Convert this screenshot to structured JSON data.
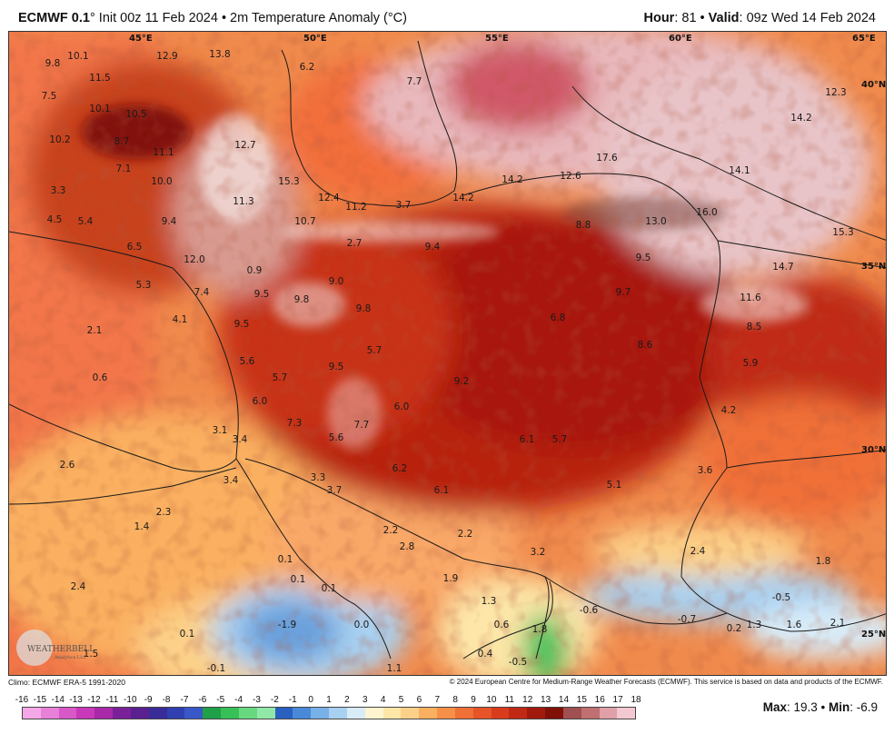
{
  "header": {
    "model": "ECMWF 0.1",
    "degree": "°",
    "init": " Init 00z 11 Feb 2024 • 2m Temperature Anomaly (°C)",
    "hour_label": "Hour",
    "hour_value": ": 81 • ",
    "valid_label": "Valid",
    "valid_value": ": 09z Wed 14 Feb 2024"
  },
  "footer": {
    "climo": "Climo: ECMWF ERA-5 1991-2020",
    "copyright": "© 2024 European Centre for Medium-Range Weather Forecasts (ECMWF). This service is based on data and products of the ECMWF."
  },
  "stats": {
    "max_label": "Max",
    "max_value": ": 19.3 • ",
    "min_label": "Min",
    "min_value": ": -6.9"
  },
  "colorbar": {
    "labels": [
      "-16",
      "-15",
      "-14",
      "-13",
      "-12",
      "-11",
      "-10",
      "-9",
      "-8",
      "-7",
      "-6",
      "-5",
      "-4",
      "-3",
      "-2",
      "-1",
      "0",
      "1",
      "2",
      "3",
      "4",
      "5",
      "6",
      "7",
      "8",
      "9",
      "10",
      "11",
      "12",
      "13",
      "14",
      "15",
      "16",
      "17",
      "18"
    ],
    "colors": [
      "#f5a8e8",
      "#e880d8",
      "#d858c8",
      "#c838b8",
      "#a828a8",
      "#7a2098",
      "#5a2090",
      "#3a2c98",
      "#3040b0",
      "#3858c8",
      "#20a048",
      "#38c058",
      "#68d880",
      "#90e8a8",
      "#2a60c0",
      "#4a88d8",
      "#78b0e8",
      "#a8d0f0",
      "#d8ecf8",
      "#fff4d0",
      "#fde6a8",
      "#fcd088",
      "#fab060",
      "#f69048",
      "#f07038",
      "#e65428",
      "#d83c1c",
      "#c02a14",
      "#a01a0e",
      "#801008",
      "#a05050",
      "#c07070",
      "#e0a0a8",
      "#f4c8d0"
    ]
  },
  "map": {
    "lon_labels": [
      "45°E",
      "50°E",
      "55°E",
      "60°E",
      "65°E"
    ],
    "lat_labels": [
      "40°N",
      "35°N",
      "30°N",
      "25°N"
    ],
    "values": [
      "9.8",
      "10.1",
      "11.5",
      "12.9",
      "13.8",
      "7.5",
      "10.1",
      "10.5",
      "10.2",
      "8.7",
      "6.2",
      "7.7",
      "12.7",
      "11.1",
      "7.1",
      "10.0",
      "15.3",
      "12.4",
      "11.2",
      "3.7",
      "14.2",
      "14.2",
      "12.6",
      "17.6",
      "16.0",
      "14.1",
      "14.2",
      "12.3",
      "3.3",
      "11.3",
      "4.5",
      "5.4",
      "9.4",
      "10.7",
      "2.7",
      "9.4",
      "8.8",
      "13.0",
      "6.5",
      "12.0",
      "0.9",
      "9.0",
      "9.5",
      "15.3",
      "14.7",
      "5.3",
      "7.4",
      "9.5",
      "9.8",
      "9.8",
      "9.7",
      "11.6",
      "4.1",
      "2.1",
      "9.5",
      "6.8",
      "8.5",
      "5.7",
      "8.6",
      "5.6",
      "5.7",
      "9.5",
      "9.2",
      "5.9",
      "0.6",
      "6.0",
      "6.0",
      "4.2",
      "7.3",
      "7.7",
      "3.1",
      "3.4",
      "5.6",
      "6.1",
      "5.7",
      "2.6",
      "6.2",
      "3.6",
      "3.3",
      "3.4",
      "3.7",
      "5.1",
      "6.1",
      "2.3",
      "1.4",
      "2.2",
      "2.2",
      "2.8",
      "3.2",
      "2.4",
      "1.8",
      "0.1",
      "1.9",
      "2.4",
      "0.1",
      "0.1",
      "1.3",
      "-0.6",
      "-0.5",
      "0.6",
      "1.8",
      "-0.7",
      "1.3",
      "1.6",
      "2.1",
      "-1.9",
      "0.0",
      "0.1",
      "0.2",
      "1.5",
      "-0.1",
      "1.1",
      "0.4",
      "-0.5"
    ],
    "logo_line1": "WEATHERBELL",
    "logo_line2": "Analytics LLC"
  }
}
